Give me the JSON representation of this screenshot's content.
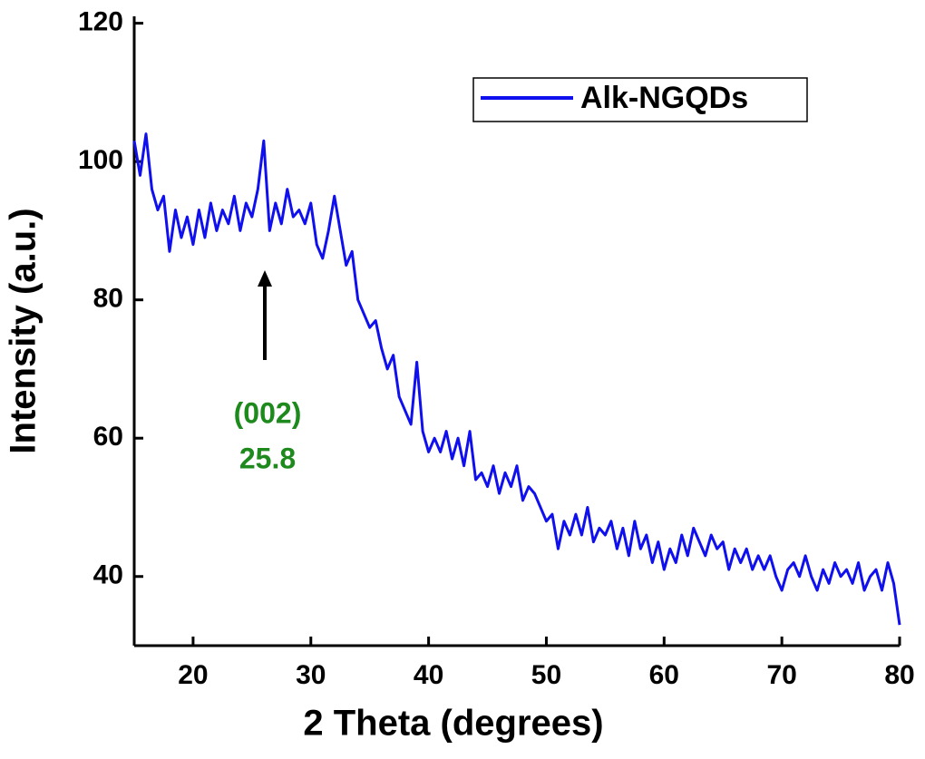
{
  "chart_data": {
    "type": "line",
    "x_label": "2 Theta (degrees)",
    "y_label": "Intensity (a.u.)",
    "xlim": [
      15,
      80
    ],
    "ylim": [
      30,
      121
    ],
    "xticks": [
      20,
      30,
      40,
      50,
      60,
      70,
      80
    ],
    "yticks": [
      40,
      60,
      80,
      100,
      120
    ],
    "legend": "upper right",
    "annotations": [
      {
        "text": "(002)"
      },
      {
        "text": "25.8"
      }
    ],
    "x": [
      15,
      15.5,
      16,
      16.5,
      17,
      17.5,
      18,
      18.5,
      19,
      19.5,
      20,
      20.5,
      21,
      21.5,
      22,
      22.5,
      23,
      23.5,
      24,
      24.5,
      25,
      25.5,
      26,
      26.5,
      27,
      27.5,
      28,
      28.5,
      29,
      29.5,
      30,
      30.5,
      31,
      31.5,
      32,
      32.5,
      33,
      33.5,
      34,
      34.5,
      35,
      35.5,
      36,
      36.5,
      37,
      37.5,
      38,
      38.5,
      39,
      39.5,
      40,
      40.5,
      41,
      41.5,
      42,
      42.5,
      43,
      43.5,
      44,
      44.5,
      45,
      45.5,
      46,
      46.5,
      47,
      47.5,
      48,
      48.5,
      49,
      49.5,
      50,
      50.5,
      51,
      51.5,
      52,
      52.5,
      53,
      53.5,
      54,
      54.5,
      55,
      55.5,
      56,
      56.5,
      57,
      57.5,
      58,
      58.5,
      59,
      59.5,
      60,
      60.5,
      61,
      61.5,
      62,
      62.5,
      63,
      63.5,
      64,
      64.5,
      65,
      65.5,
      66,
      66.5,
      67,
      67.5,
      68,
      68.5,
      69,
      69.5,
      70,
      70.5,
      71,
      71.5,
      72,
      72.5,
      73,
      73.5,
      74,
      74.5,
      75,
      75.5,
      76,
      76.5,
      77,
      77.5,
      78,
      78.5,
      79,
      79.5,
      80
    ],
    "series": [
      {
        "name": "Alk-NGQDs",
        "color": "#1010ee",
        "values": [
          103,
          98,
          104,
          96,
          93,
          95,
          87,
          93,
          89,
          92,
          88,
          93,
          89,
          94,
          90,
          93,
          91,
          95,
          90,
          94,
          92,
          96,
          103,
          90,
          94,
          91,
          96,
          92,
          93,
          91,
          94,
          88,
          86,
          90,
          95,
          90,
          85,
          87,
          80,
          78,
          76,
          77,
          73,
          70,
          72,
          66,
          64,
          62,
          71,
          61,
          58,
          60,
          58,
          61,
          57,
          60,
          56,
          61,
          54,
          55,
          53,
          56,
          52,
          55,
          53,
          56,
          51,
          53,
          52,
          50,
          48,
          49,
          44,
          48,
          46,
          49,
          46,
          50,
          45,
          47,
          46,
          48,
          44,
          47,
          43,
          48,
          44,
          46,
          42,
          45,
          41,
          44,
          42,
          46,
          43,
          47,
          45,
          43,
          46,
          44,
          45,
          41,
          44,
          42,
          44,
          41,
          43,
          41,
          43,
          40,
          38,
          41,
          42,
          40,
          43,
          40,
          38,
          41,
          39,
          42,
          40,
          41,
          39,
          42,
          38,
          40,
          41,
          38,
          42,
          39,
          33
        ]
      }
    ]
  }
}
